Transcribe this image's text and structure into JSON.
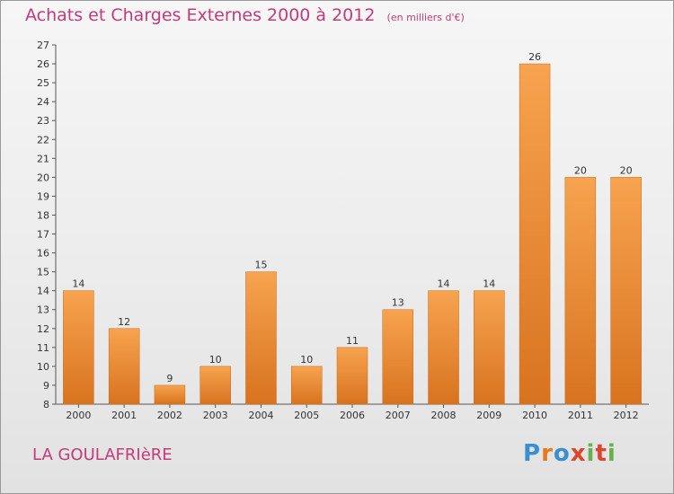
{
  "header": {
    "title": "Achats et Charges Externes 2000 à 2012",
    "subtitle": "(en milliers d'€)"
  },
  "footer": {
    "commune": "LA GOULAFRIèRE",
    "logo_text": "Proxiti",
    "logo_colors": [
      "#3a8fd0",
      "#e87a1e",
      "#3a8fd0",
      "#e0442a",
      "#6ab04c",
      "#e0442a",
      "#6ab04c"
    ]
  },
  "colors": {
    "bar_light": "#f7a34f",
    "bar_dark": "#d8731f",
    "accent": "#c43a7a",
    "grid": "#d0d0d0"
  },
  "chart_data": {
    "type": "bar",
    "title": "Achats et Charges Externes 2000 à 2012",
    "subtitle": "(en milliers d'€)",
    "categories": [
      "2000",
      "2001",
      "2002",
      "2003",
      "2004",
      "2005",
      "2006",
      "2007",
      "2008",
      "2009",
      "2010",
      "2011",
      "2012"
    ],
    "values": [
      14,
      12,
      9,
      10,
      15,
      10,
      11,
      13,
      14,
      14,
      26,
      20,
      20
    ],
    "ylim": [
      8,
      27
    ],
    "yticks": [
      8,
      9,
      10,
      11,
      12,
      13,
      14,
      15,
      16,
      17,
      18,
      19,
      20,
      21,
      22,
      23,
      24,
      25,
      26,
      27
    ],
    "xlabel": "",
    "ylabel": "",
    "grid": false
  }
}
